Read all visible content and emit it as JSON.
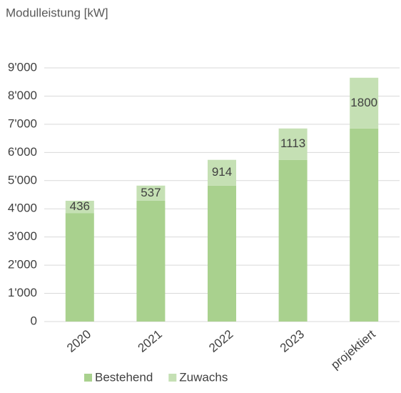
{
  "chart_data": {
    "type": "stacked_bar",
    "title": "Modulleistung [kW]",
    "categories": [
      "2020",
      "2021",
      "2022",
      "2023",
      "projektiert"
    ],
    "series": [
      {
        "name": "Bestehend",
        "color": "#a9d18e",
        "values": [
          3850,
          4286,
          4823,
          5737,
          6850
        ]
      },
      {
        "name": "Zuwachs",
        "color": "#c5e0b4",
        "values": [
          436,
          537,
          914,
          1113,
          1800
        ],
        "show_labels": true
      }
    ],
    "ylim": [
      0,
      9000
    ],
    "yticks": [
      0,
      {
        "value": 1000,
        "label": "1'000"
      },
      {
        "value": 2000,
        "label": "2'000"
      },
      {
        "value": 3000,
        "label": "3'000"
      },
      {
        "value": 4000,
        "label": "4'000"
      },
      {
        "value": 5000,
        "label": "5'000"
      },
      {
        "value": 6000,
        "label": "6'000"
      },
      {
        "value": 7000,
        "label": "7'000"
      },
      {
        "value": 8000,
        "label": "8'000"
      },
      {
        "value": 9000,
        "label": "9'000"
      }
    ],
    "grid": true,
    "legend": "bottom"
  }
}
